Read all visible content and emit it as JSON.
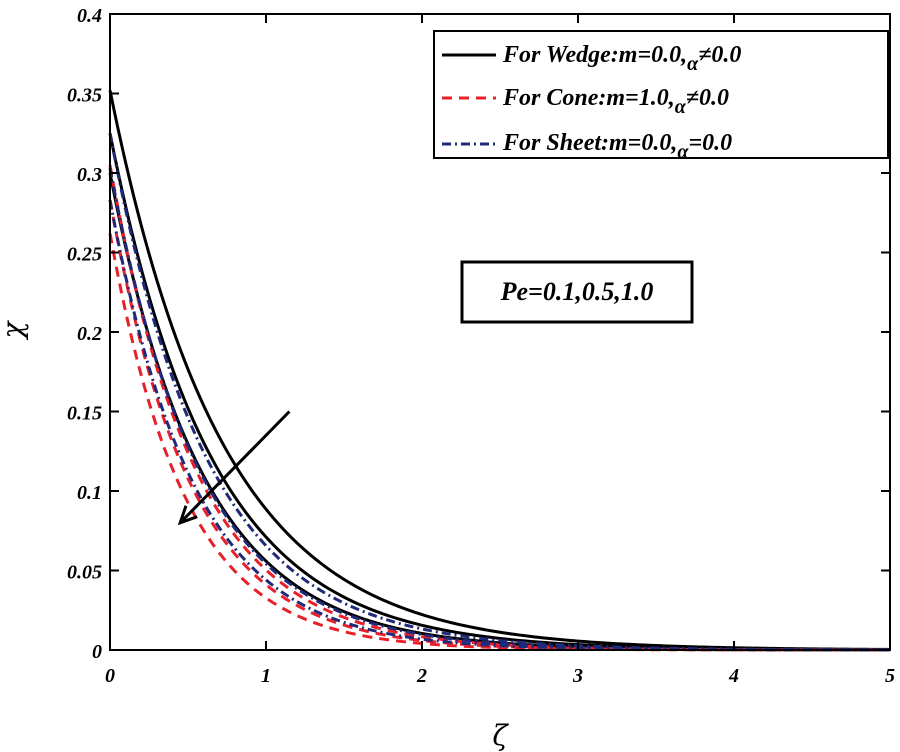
{
  "chart_data": {
    "type": "line",
    "title": "",
    "xlabel": "ζ",
    "ylabel": "χ",
    "xlim": [
      0,
      5
    ],
    "ylim": [
      0,
      0.4
    ],
    "xticks": [
      "0",
      "1",
      "2",
      "3",
      "4",
      "5"
    ],
    "yticks": [
      "0",
      "0.05",
      "0.1",
      "0.15",
      "0.2",
      "0.25",
      "0.3",
      "0.35",
      "0.4"
    ],
    "legend": [
      {
        "label": "For Wedge:m=0.0,",
        "alpha_part": "α",
        "tail": "≠0.0",
        "style": "solid",
        "color": "#000000"
      },
      {
        "label": "For Cone:m=1.0,",
        "alpha_part": "α",
        "tail": "≠0.0",
        "style": "dashed",
        "color": "#e8202a"
      },
      {
        "label": "For Sheet:m=0.0,",
        "alpha_part": "α",
        "tail": "=0.0",
        "style": "dashdot",
        "color": "#1f2a7a"
      }
    ],
    "annotation": "Pe=0.1,0.5,1.0",
    "series": [
      {
        "name": "Wedge Pe=0.1",
        "group": "wedge",
        "y0": 0.352,
        "decay": 1.38
      },
      {
        "name": "Wedge Pe=0.5",
        "group": "wedge",
        "y0": 0.325,
        "decay": 1.52
      },
      {
        "name": "Wedge Pe=1.0",
        "group": "wedge",
        "y0": 0.3,
        "decay": 1.68
      },
      {
        "name": "Cone Pe=0.1",
        "group": "cone",
        "y0": 0.305,
        "decay": 1.8
      },
      {
        "name": "Cone Pe=0.5",
        "group": "cone",
        "y0": 0.283,
        "decay": 1.93
      },
      {
        "name": "Cone Pe=1.0",
        "group": "cone",
        "y0": 0.262,
        "decay": 2.08
      },
      {
        "name": "Sheet Pe=0.1",
        "group": "sheet",
        "y0": 0.325,
        "decay": 1.6
      },
      {
        "name": "Sheet Pe=0.5",
        "group": "sheet",
        "y0": 0.303,
        "decay": 1.72
      },
      {
        "name": "Sheet Pe=1.0",
        "group": "sheet",
        "y0": 0.283,
        "decay": 1.86
      }
    ],
    "arrow": {
      "from": [
        1.15,
        0.15
      ],
      "to": [
        0.45,
        0.08
      ]
    }
  }
}
